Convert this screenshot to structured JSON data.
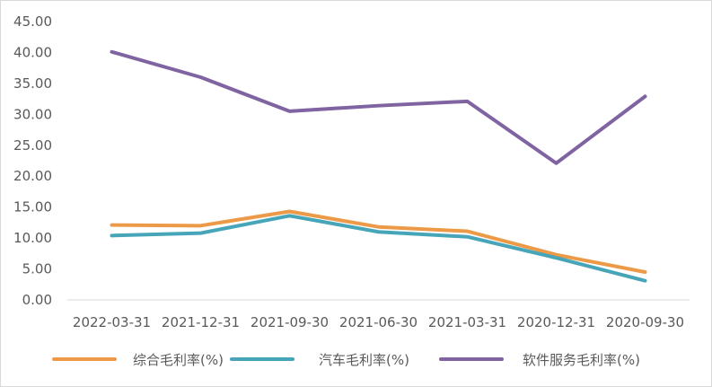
{
  "chart_data": {
    "type": "line",
    "title": "",
    "xlabel": "",
    "ylabel": "",
    "ylim": [
      0,
      45
    ],
    "yticks": [
      "0.00",
      "5.00",
      "10.00",
      "15.00",
      "20.00",
      "25.00",
      "30.00",
      "35.00",
      "40.00",
      "45.00"
    ],
    "categories": [
      "2022-03-31",
      "2021-12-31",
      "2021-09-30",
      "2021-06-30",
      "2021-03-31",
      "2020-12-31",
      "2020-09-30"
    ],
    "grid": false,
    "legend_position": "bottom",
    "series": [
      {
        "name": "综合毛利率(%)",
        "color": "#ED9A48",
        "values": [
          12.1,
          12.0,
          14.3,
          11.8,
          11.1,
          7.3,
          4.5
        ]
      },
      {
        "name": "汽车毛利率(%)",
        "color": "#46A5B8",
        "values": [
          10.4,
          10.8,
          13.6,
          11.0,
          10.2,
          6.8,
          3.1
        ]
      },
      {
        "name": "软件服务毛利率(%)",
        "color": "#8064A2",
        "values": [
          40.1,
          36.0,
          30.5,
          31.4,
          32.1,
          22.1,
          32.9
        ]
      }
    ]
  }
}
